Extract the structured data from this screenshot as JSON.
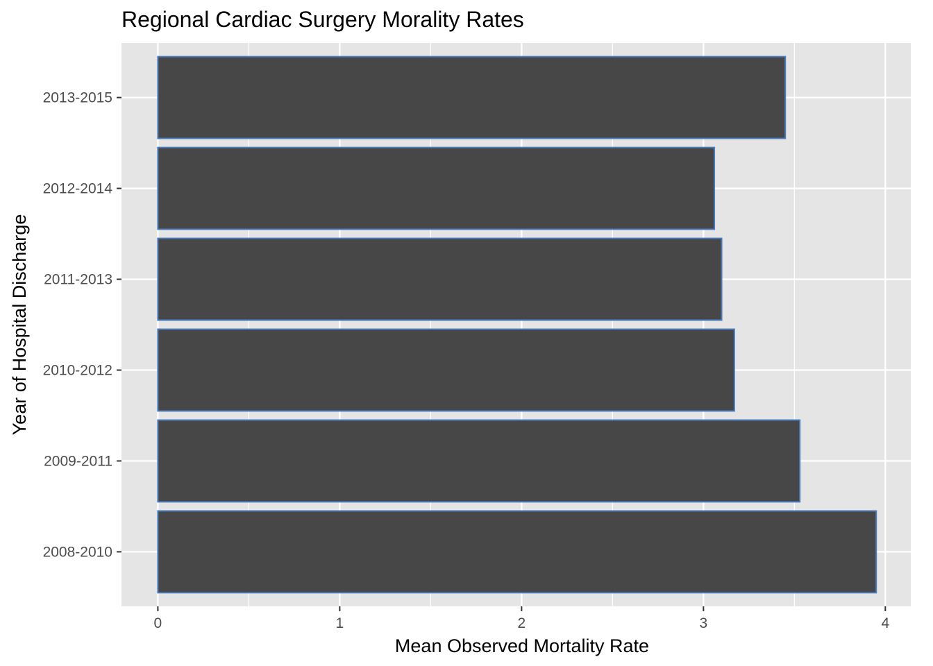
{
  "chart_data": {
    "type": "bar",
    "orientation": "horizontal",
    "title": "Regional Cardiac Surgery Morality Rates",
    "xlabel": "Mean Observed Mortality Rate",
    "ylabel": "Year of Hospital Discharge",
    "categories": [
      "2008-2010",
      "2009-2011",
      "2010-2012",
      "2011-2013",
      "2012-2014",
      "2013-2015"
    ],
    "values": [
      3.95,
      3.53,
      3.17,
      3.1,
      3.06,
      3.45
    ],
    "xlim": [
      -0.2,
      4.14
    ],
    "xticks": [
      0,
      1,
      2,
      3,
      4
    ],
    "grid": true,
    "colors": {
      "bar_fill": "#474747",
      "bar_outline": "#4a7bbd",
      "panel_background": "#e5e5e5",
      "grid_line": "#ffffff",
      "tick_label": "#4d4d4d"
    }
  }
}
